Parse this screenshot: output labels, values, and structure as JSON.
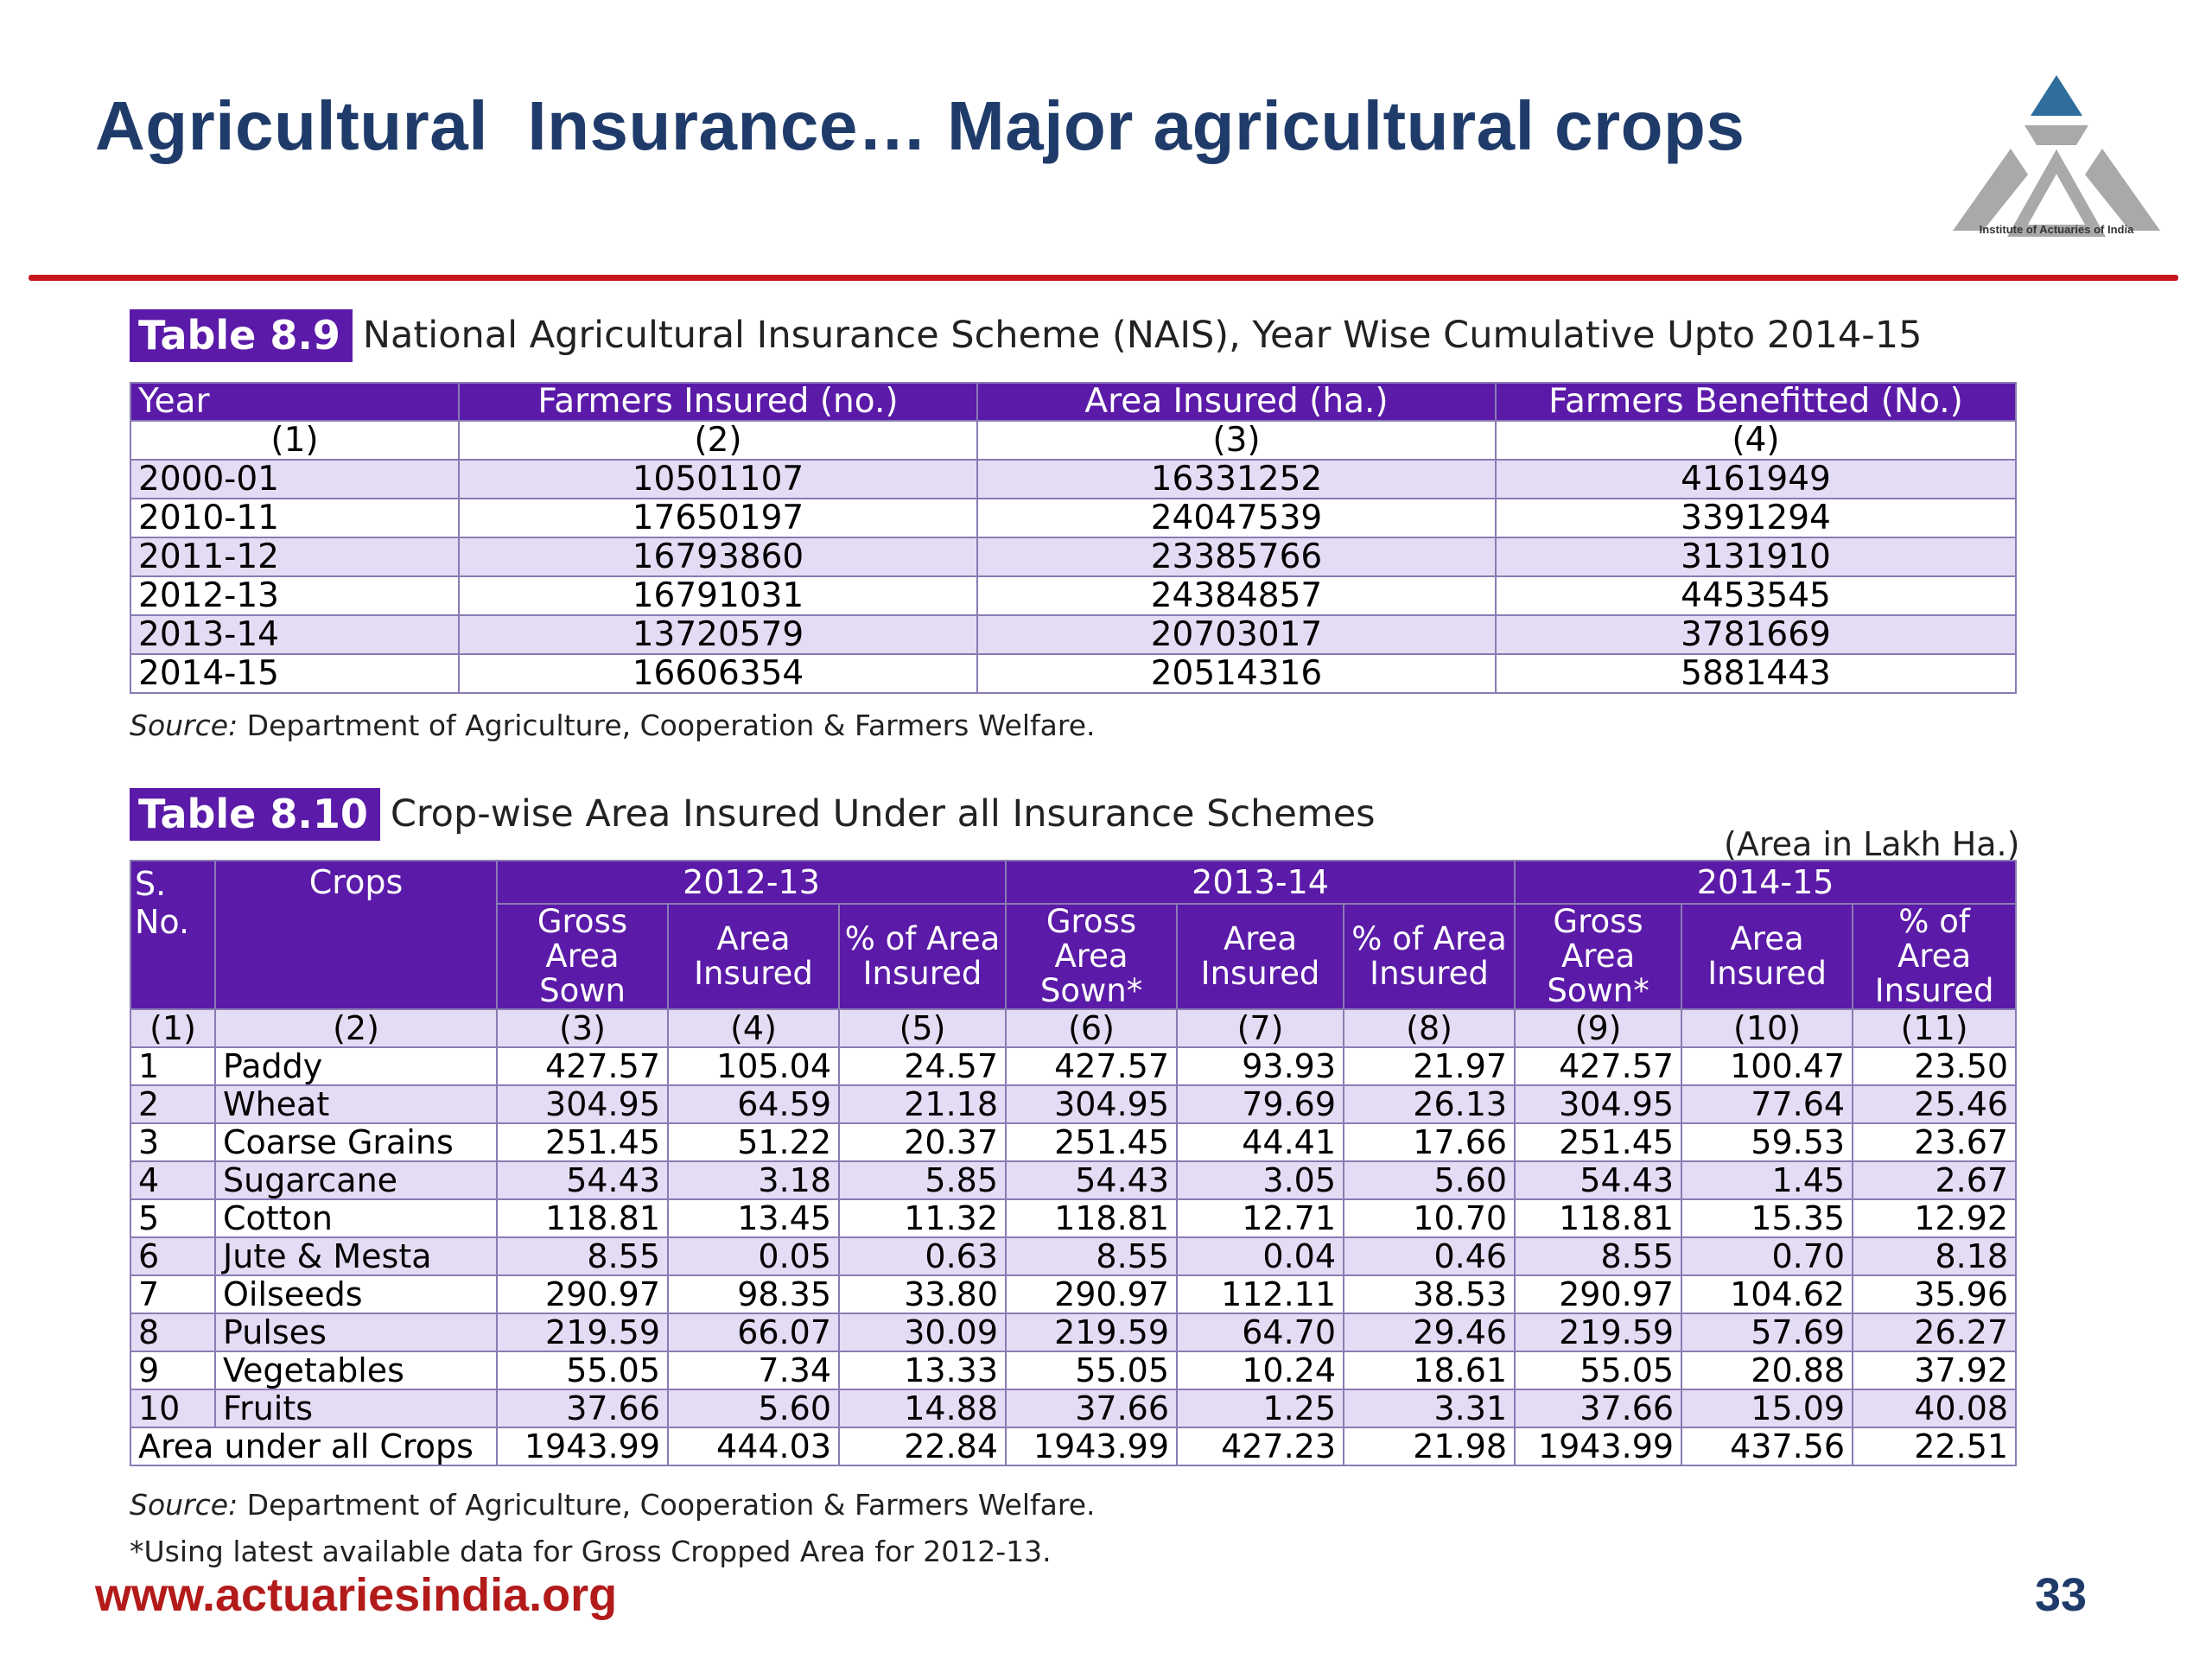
{
  "slide": {
    "title": "Agricultural  Insurance… Major agricultural crops",
    "logo_text": "Institute of Actuaries of India",
    "footer_url": "www.actuariesindia.org",
    "page_number": "33",
    "accent_color": "#c4161c",
    "title_color": "#1f3b6a",
    "table_header_color": "#5b1aa8"
  },
  "table_8_9": {
    "label": "Table 8.9",
    "caption": "National Agricultural Insurance Scheme (NAIS), Year Wise Cumulative Upto 2014-15",
    "headers": [
      "Year",
      "Farmers Insured (no.)",
      "Area Insured (ha.)",
      "Farmers Benefitted (No.)"
    ],
    "col_numbers": [
      "(1)",
      "(2)",
      "(3)",
      "(4)"
    ],
    "rows": [
      [
        "2000-01",
        "10501107",
        "16331252",
        "4161949"
      ],
      [
        "2010-11",
        "17650197",
        "24047539",
        "3391294"
      ],
      [
        "2011-12",
        "16793860",
        "23385766",
        "3131910"
      ],
      [
        "2012-13",
        "16791031",
        "24384857",
        "4453545"
      ],
      [
        "2013-14",
        "13720579",
        "20703017",
        "3781669"
      ],
      [
        "2014-15",
        "16606354",
        "20514316",
        "5881443"
      ]
    ],
    "source_label": "Source:",
    "source_text": " Department of Agriculture, Cooperation & Farmers Welfare."
  },
  "table_8_10": {
    "label": "Table 8.10",
    "caption": "Crop-wise Area Insured Under all Insurance Schemes",
    "unit_note": "(Area in Lakh Ha.)",
    "header_sno": "S. No.",
    "header_crops": "Crops",
    "years": [
      "2012-13",
      "2013-14",
      "2014-15"
    ],
    "sub_headers": [
      "Gross Area Sown",
      "Area Insured",
      "% of Area Insured",
      "Gross Area Sown*",
      "Area Insured",
      "% of Area Insured",
      "Gross Area Sown*",
      "Area Insured",
      "% of Area Insured"
    ],
    "col_numbers": [
      "(1)",
      "(2)",
      "(3)",
      "(4)",
      "(5)",
      "(6)",
      "(7)",
      "(8)",
      "(9)",
      "(10)",
      "(11)"
    ],
    "rows": [
      [
        "1",
        "Paddy",
        "427.57",
        "105.04",
        "24.57",
        "427.57",
        "93.93",
        "21.97",
        "427.57",
        "100.47",
        "23.50"
      ],
      [
        "2",
        "Wheat",
        "304.95",
        "64.59",
        "21.18",
        "304.95",
        "79.69",
        "26.13",
        "304.95",
        "77.64",
        "25.46"
      ],
      [
        "3",
        "Coarse Grains",
        "251.45",
        "51.22",
        "20.37",
        "251.45",
        "44.41",
        "17.66",
        "251.45",
        "59.53",
        "23.67"
      ],
      [
        "4",
        "Sugarcane",
        "54.43",
        "3.18",
        "5.85",
        "54.43",
        "3.05",
        "5.60",
        "54.43",
        "1.45",
        "2.67"
      ],
      [
        "5",
        "Cotton",
        "118.81",
        "13.45",
        "11.32",
        "118.81",
        "12.71",
        "10.70",
        "118.81",
        "15.35",
        "12.92"
      ],
      [
        "6",
        "Jute & Mesta",
        "8.55",
        "0.05",
        "0.63",
        "8.55",
        "0.04",
        "0.46",
        "8.55",
        "0.70",
        "8.18"
      ],
      [
        "7",
        "Oilseeds",
        "290.97",
        "98.35",
        "33.80",
        "290.97",
        "112.11",
        "38.53",
        "290.97",
        "104.62",
        "35.96"
      ],
      [
        "8",
        "Pulses",
        "219.59",
        "66.07",
        "30.09",
        "219.59",
        "64.70",
        "29.46",
        "219.59",
        "57.69",
        "26.27"
      ],
      [
        "9",
        "Vegetables",
        "55.05",
        "7.34",
        "13.33",
        "55.05",
        "10.24",
        "18.61",
        "55.05",
        "20.88",
        "37.92"
      ],
      [
        "10",
        "Fruits",
        "37.66",
        "5.60",
        "14.88",
        "37.66",
        "1.25",
        "3.31",
        "37.66",
        "15.09",
        "40.08"
      ]
    ],
    "total_label": "Area under all Crops",
    "total_values": [
      "1943.99",
      "444.03",
      "22.84",
      "1943.99",
      "427.23",
      "21.98",
      "1943.99",
      "437.56",
      "22.51"
    ],
    "source_label": "Source:",
    "source_text": " Department of Agriculture, Cooperation & Farmers Welfare.",
    "footnote": "*Using latest available data for Gross Cropped Area for 2012-13."
  }
}
